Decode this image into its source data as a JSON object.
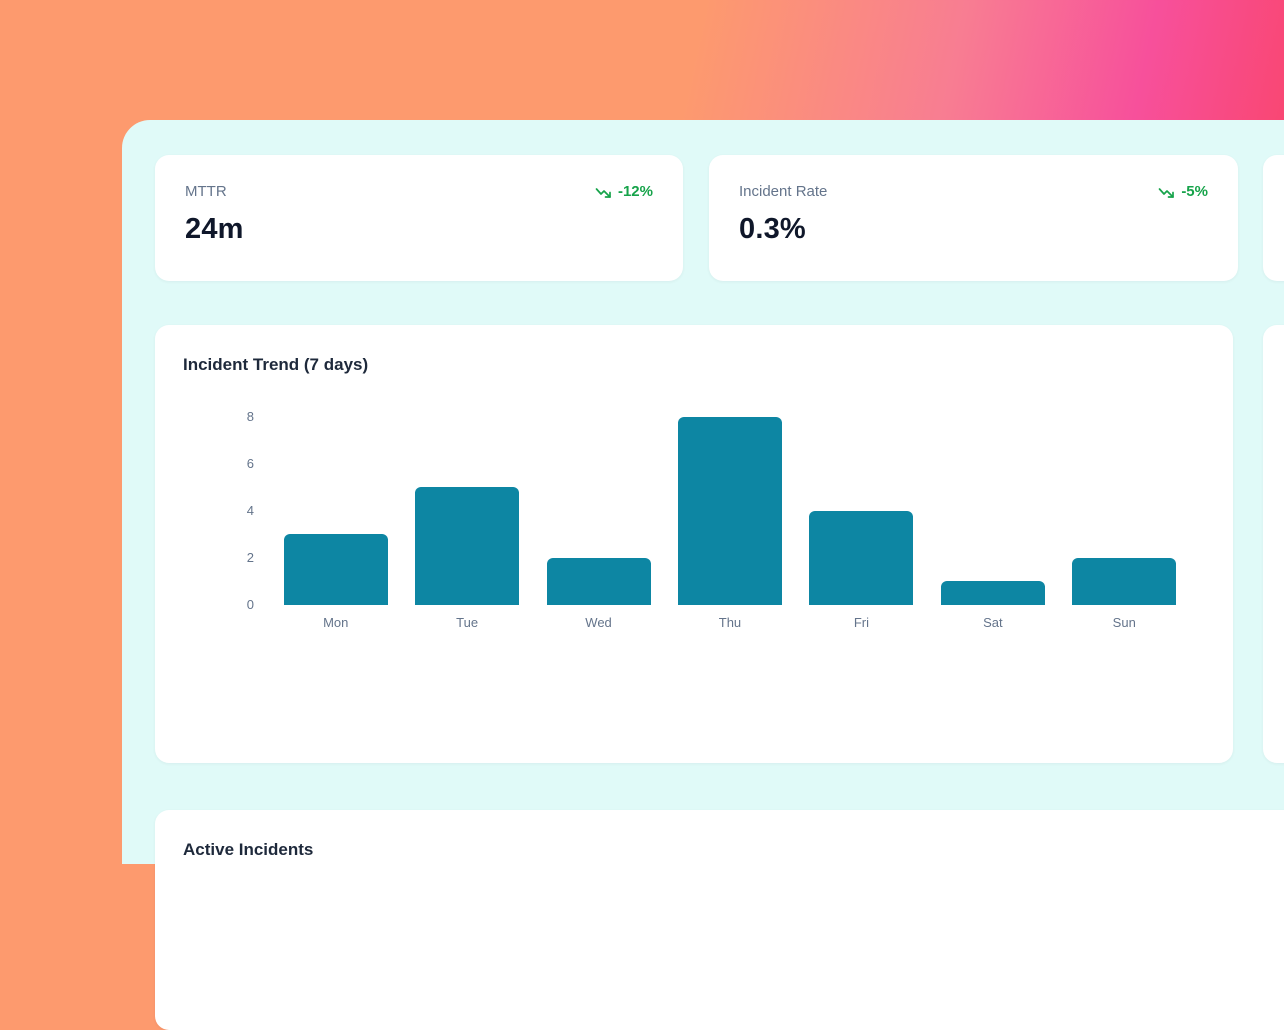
{
  "theme": {
    "gradient": [
      "#fd9a6e",
      "#f87d92",
      "#f7509b",
      "#fb4055"
    ],
    "panel_bg": "#e0faf8",
    "accent_green": "#16a34a",
    "bar_color": "#0d86a3"
  },
  "kpis": [
    {
      "label": "MTTR",
      "value": "24m",
      "trend": "-12%",
      "trend_direction": "down"
    },
    {
      "label": "Incident Rate",
      "value": "0.3%",
      "trend": "-5%",
      "trend_direction": "down"
    }
  ],
  "chart_card": {
    "title": "Incident Trend (7 days)"
  },
  "chart_data": {
    "type": "bar",
    "title": "Incident Trend (7 days)",
    "categories": [
      "Mon",
      "Tue",
      "Wed",
      "Thu",
      "Fri",
      "Sat",
      "Sun"
    ],
    "values": [
      3,
      5,
      2,
      8,
      4,
      1,
      2
    ],
    "xlabel": "",
    "ylabel": "",
    "ylim": [
      0,
      8
    ],
    "yticks": [
      0,
      2,
      4,
      6,
      8
    ],
    "grid": false,
    "legend": false,
    "bar_color": "#0d86a3"
  },
  "active_card": {
    "title": "Active Incidents"
  }
}
